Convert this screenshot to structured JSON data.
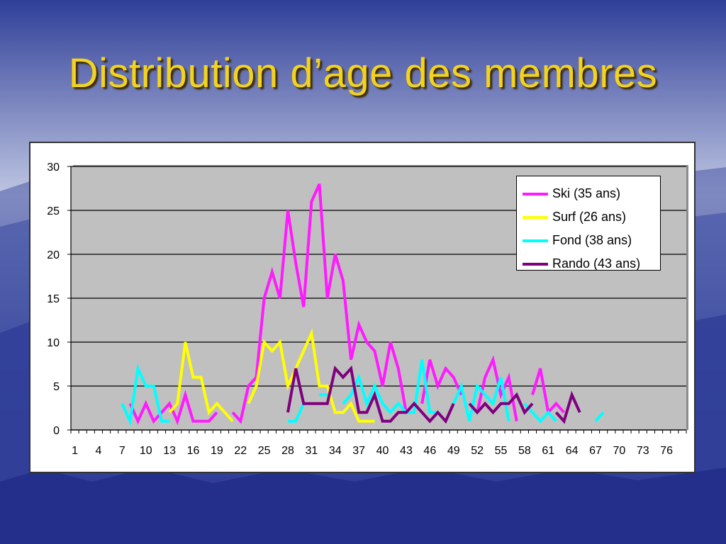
{
  "title": "Distribution d’age des membres",
  "colors": {
    "ski": "#ff1aff",
    "surf": "#ffff00",
    "fond": "#00ffff",
    "rando": "#7f007f",
    "plot_bg": "#c0c0c0"
  },
  "chart_data": {
    "type": "line",
    "title": "",
    "xlabel": "",
    "ylabel": "",
    "ylim": [
      0,
      30
    ],
    "y_ticks": [
      "0",
      "5",
      "10",
      "15",
      "20",
      "25",
      "30"
    ],
    "x_range": [
      1,
      78
    ],
    "x_tick_labels": [
      "1",
      "4",
      "7",
      "10",
      "13",
      "16",
      "19",
      "22",
      "25",
      "28",
      "31",
      "34",
      "37",
      "40",
      "43",
      "46",
      "49",
      "52",
      "55",
      "58",
      "61",
      "64",
      "67",
      "70",
      "73",
      "76"
    ],
    "grid": "horizontal",
    "legend_position": "top-right",
    "series": [
      {
        "name": "Ski (35 ans)",
        "color": "#ff1aff",
        "points": [
          [
            8,
            3
          ],
          [
            9,
            1
          ],
          [
            10,
            3
          ],
          [
            11,
            1
          ],
          [
            12,
            2
          ],
          [
            13,
            3
          ],
          [
            14,
            1
          ],
          [
            15,
            4
          ],
          [
            16,
            1
          ],
          [
            17,
            1
          ],
          [
            18,
            1
          ],
          [
            19,
            2
          ],
          null,
          [
            21,
            2
          ],
          [
            22,
            1
          ],
          [
            23,
            5
          ],
          [
            24,
            6
          ],
          [
            25,
            15
          ],
          [
            26,
            18
          ],
          [
            27,
            15
          ],
          [
            28,
            25
          ],
          [
            29,
            19
          ],
          [
            30,
            14
          ],
          [
            31,
            26
          ],
          [
            32,
            28
          ],
          [
            33,
            15
          ],
          [
            34,
            20
          ],
          [
            35,
            17
          ],
          [
            36,
            8
          ],
          [
            37,
            12
          ],
          [
            38,
            10
          ],
          [
            39,
            9
          ],
          [
            40,
            5
          ],
          [
            41,
            10
          ],
          [
            42,
            7
          ],
          [
            43,
            2
          ],
          null,
          [
            45,
            3
          ],
          [
            46,
            8
          ],
          [
            47,
            5
          ],
          [
            48,
            7
          ],
          [
            49,
            6
          ],
          [
            50,
            4
          ],
          null,
          [
            52,
            2
          ],
          [
            53,
            6
          ],
          [
            54,
            8
          ],
          [
            55,
            4
          ],
          [
            56,
            6
          ],
          [
            57,
            1
          ],
          null,
          [
            59,
            4
          ],
          [
            60,
            7
          ],
          [
            61,
            2
          ],
          [
            62,
            3
          ],
          [
            63,
            2
          ]
        ]
      },
      {
        "name": "Surf (26 ans)",
        "color": "#ffff00",
        "points": [
          [
            13,
            2
          ],
          [
            14,
            3
          ],
          [
            15,
            10
          ],
          [
            16,
            6
          ],
          [
            17,
            6
          ],
          [
            18,
            2
          ],
          [
            19,
            3
          ],
          [
            20,
            2
          ],
          [
            21,
            1
          ],
          null,
          [
            23,
            3
          ],
          [
            24,
            5
          ],
          [
            25,
            10
          ],
          [
            26,
            9
          ],
          [
            27,
            10
          ],
          [
            28,
            5
          ],
          [
            29,
            7
          ],
          [
            30,
            9
          ],
          [
            31,
            11
          ],
          [
            32,
            5
          ],
          [
            33,
            5
          ],
          [
            34,
            2
          ],
          [
            35,
            2
          ],
          [
            36,
            3
          ],
          [
            37,
            1
          ],
          [
            38,
            1
          ],
          [
            39,
            1
          ]
        ]
      },
      {
        "name": "Fond (38 ans)",
        "color": "#00ffff",
        "points": [
          [
            7,
            3
          ],
          [
            8,
            1
          ],
          [
            9,
            7
          ],
          [
            10,
            5
          ],
          [
            11,
            5
          ],
          [
            12,
            1
          ],
          [
            13,
            1
          ],
          null,
          [
            28,
            1
          ],
          [
            29,
            1
          ],
          [
            30,
            3
          ],
          null,
          [
            32,
            4
          ],
          [
            33,
            4
          ],
          null,
          [
            35,
            3
          ],
          [
            36,
            4
          ],
          [
            37,
            6
          ],
          [
            38,
            3
          ],
          [
            39,
            5
          ],
          [
            40,
            3
          ],
          [
            41,
            2
          ],
          [
            42,
            3
          ],
          [
            43,
            2
          ],
          [
            44,
            2
          ],
          [
            45,
            8
          ],
          [
            46,
            2
          ],
          [
            47,
            2
          ],
          null,
          [
            49,
            3
          ],
          [
            50,
            5
          ],
          [
            51,
            1
          ],
          [
            52,
            5
          ],
          [
            53,
            4
          ],
          [
            54,
            3
          ],
          [
            55,
            6
          ],
          [
            56,
            1
          ],
          null,
          [
            58,
            3
          ],
          [
            59,
            2
          ],
          [
            60,
            1
          ],
          [
            61,
            2
          ],
          [
            62,
            1
          ],
          null,
          [
            67,
            1
          ],
          [
            68,
            2
          ]
        ]
      },
      {
        "name": "Rando (43 ans)",
        "color": "#7f007f",
        "points": [
          [
            28,
            2
          ],
          [
            29,
            7
          ],
          [
            30,
            3
          ],
          [
            31,
            3
          ],
          [
            32,
            3
          ],
          [
            33,
            3
          ],
          [
            34,
            7
          ],
          [
            35,
            6
          ],
          [
            36,
            7
          ],
          [
            37,
            2
          ],
          [
            38,
            2
          ],
          [
            39,
            4
          ],
          [
            40,
            1
          ],
          [
            41,
            1
          ],
          [
            42,
            2
          ],
          [
            43,
            2
          ],
          [
            44,
            3
          ],
          [
            45,
            2
          ],
          [
            46,
            1
          ],
          [
            47,
            2
          ],
          [
            48,
            1
          ],
          [
            49,
            3
          ],
          null,
          [
            51,
            3
          ],
          [
            52,
            2
          ],
          [
            53,
            3
          ],
          [
            54,
            2
          ],
          [
            55,
            3
          ],
          [
            56,
            3
          ],
          [
            57,
            4
          ],
          [
            58,
            2
          ],
          [
            59,
            3
          ],
          null,
          [
            62,
            2
          ],
          [
            63,
            1
          ],
          [
            64,
            4
          ],
          [
            65,
            2
          ]
        ]
      }
    ]
  }
}
